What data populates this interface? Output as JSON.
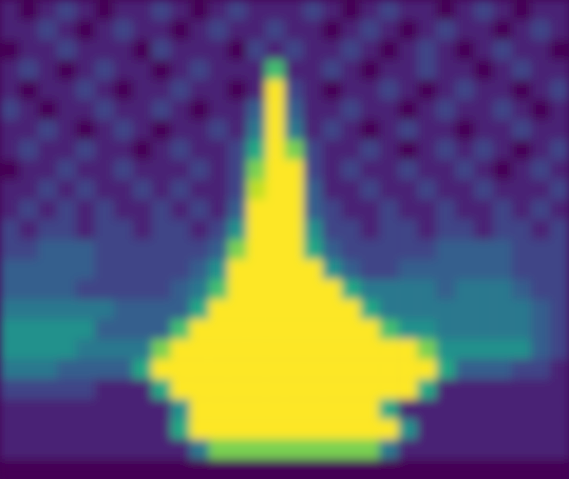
{
  "chart_data": {
    "type": "heatmap",
    "color": "viridis",
    "tick_labels": false,
    "zlim": [
      0,
      10
    ],
    "z": [
      [
        1,
        0,
        1,
        2,
        1,
        0,
        1,
        1,
        2,
        1,
        0,
        1,
        2,
        1,
        1,
        1,
        2,
        1,
        0,
        1,
        2,
        1,
        1,
        0,
        1,
        2,
        1,
        0,
        1,
        1
      ],
      [
        1,
        1,
        2,
        1,
        0,
        1,
        2,
        1,
        1,
        0,
        1,
        2,
        1,
        1,
        2,
        1,
        1,
        0,
        1,
        2,
        1,
        0,
        1,
        2,
        1,
        1,
        0,
        1,
        2,
        1
      ],
      [
        0,
        1,
        1,
        2,
        1,
        1,
        1,
        0,
        2,
        1,
        1,
        1,
        0,
        2,
        1,
        2,
        1,
        1,
        2,
        1,
        0,
        1,
        2,
        1,
        0,
        1,
        2,
        1,
        1,
        0
      ],
      [
        1,
        2,
        1,
        0,
        1,
        2,
        1,
        1,
        0,
        1,
        2,
        1,
        1,
        1,
        7,
        1,
        1,
        2,
        1,
        0,
        1,
        1,
        2,
        1,
        1,
        0,
        1,
        2,
        1,
        1
      ],
      [
        1,
        0,
        1,
        1,
        2,
        1,
        0,
        1,
        1,
        2,
        1,
        1,
        0,
        1,
        10,
        2,
        1,
        0,
        1,
        1,
        2,
        1,
        0,
        1,
        2,
        1,
        1,
        0,
        1,
        2
      ],
      [
        2,
        1,
        0,
        1,
        1,
        2,
        1,
        1,
        2,
        1,
        0,
        1,
        1,
        3,
        10,
        3,
        1,
        1,
        2,
        1,
        1,
        0,
        1,
        2,
        1,
        1,
        2,
        1,
        0,
        1
      ],
      [
        1,
        1,
        2,
        1,
        0,
        1,
        2,
        1,
        0,
        1,
        1,
        2,
        1,
        4,
        10,
        4,
        1,
        2,
        1,
        0,
        1,
        2,
        1,
        1,
        0,
        1,
        1,
        2,
        1,
        1
      ],
      [
        1,
        2,
        1,
        1,
        2,
        1,
        1,
        0,
        1,
        2,
        1,
        1,
        2,
        6,
        10,
        8,
        2,
        1,
        1,
        2,
        1,
        0,
        1,
        2,
        1,
        2,
        1,
        0,
        1,
        2
      ],
      [
        0,
        1,
        1,
        2,
        1,
        1,
        2,
        1,
        1,
        1,
        2,
        1,
        2,
        8,
        10,
        10,
        2,
        1,
        2,
        1,
        1,
        2,
        1,
        1,
        2,
        1,
        0,
        1,
        2,
        1
      ],
      [
        1,
        1,
        2,
        1,
        2,
        1,
        1,
        2,
        1,
        2,
        1,
        1,
        2,
        9,
        10,
        10,
        3,
        1,
        1,
        2,
        1,
        1,
        2,
        1,
        1,
        2,
        1,
        1,
        1,
        2
      ],
      [
        1,
        2,
        1,
        2,
        1,
        2,
        1,
        1,
        2,
        1,
        2,
        1,
        3,
        10,
        10,
        10,
        3,
        2,
        1,
        1,
        2,
        1,
        1,
        2,
        1,
        1,
        2,
        1,
        2,
        1
      ],
      [
        2,
        1,
        2,
        2,
        1,
        2,
        2,
        1,
        2,
        2,
        1,
        2,
        5,
        10,
        10,
        10,
        5,
        2,
        2,
        1,
        2,
        2,
        1,
        2,
        2,
        1,
        2,
        2,
        1,
        2
      ],
      [
        2,
        2,
        3,
        3,
        3,
        2,
        2,
        2,
        2,
        2,
        2,
        3,
        8,
        10,
        10,
        10,
        6,
        3,
        2,
        2,
        2,
        2,
        2,
        3,
        3,
        3,
        3,
        2,
        2,
        2
      ],
      [
        3,
        3,
        3,
        3,
        3,
        2,
        2,
        2,
        2,
        2,
        3,
        5,
        10,
        10,
        10,
        10,
        10,
        5,
        3,
        2,
        2,
        3,
        3,
        3,
        3,
        3,
        3,
        2,
        2,
        2
      ],
      [
        3,
        3,
        3,
        3,
        2,
        2,
        2,
        2,
        2,
        3,
        4,
        7,
        10,
        10,
        10,
        10,
        10,
        10,
        6,
        4,
        4,
        4,
        4,
        3,
        4,
        4,
        4,
        3,
        2,
        2
      ],
      [
        4,
        4,
        4,
        4,
        4,
        4,
        3,
        3,
        3,
        3,
        6,
        10,
        10,
        10,
        10,
        10,
        10,
        10,
        10,
        6,
        4,
        4,
        4,
        4,
        4,
        4,
        4,
        4,
        3,
        2
      ],
      [
        5,
        5,
        5,
        5,
        5,
        3,
        3,
        3,
        3,
        7,
        10,
        10,
        10,
        10,
        10,
        10,
        10,
        10,
        10,
        10,
        7,
        5,
        5,
        4,
        4,
        4,
        4,
        4,
        3,
        2
      ],
      [
        5,
        5,
        5,
        5,
        4,
        4,
        4,
        4,
        8,
        10,
        10,
        10,
        10,
        10,
        10,
        10,
        10,
        10,
        10,
        10,
        10,
        10,
        8,
        5,
        5,
        5,
        5,
        5,
        3,
        2
      ],
      [
        4,
        4,
        4,
        3,
        3,
        3,
        3,
        6,
        10,
        10,
        10,
        10,
        10,
        10,
        10,
        10,
        10,
        10,
        10,
        10,
        10,
        10,
        10,
        6,
        3,
        3,
        3,
        2,
        2,
        1
      ],
      [
        2,
        2,
        2,
        2,
        2,
        1,
        1,
        1,
        6,
        10,
        10,
        10,
        10,
        10,
        10,
        10,
        10,
        10,
        10,
        10,
        10,
        10,
        6,
        1,
        1,
        1,
        1,
        1,
        1,
        1
      ],
      [
        1,
        1,
        1,
        1,
        1,
        1,
        1,
        1,
        1,
        5,
        10,
        10,
        10,
        10,
        10,
        10,
        10,
        10,
        10,
        10,
        6,
        1,
        1,
        1,
        1,
        1,
        1,
        1,
        1,
        1
      ],
      [
        1,
        1,
        1,
        1,
        1,
        1,
        1,
        1,
        1,
        6,
        10,
        10,
        10,
        10,
        10,
        10,
        10,
        10,
        10,
        10,
        10,
        5,
        1,
        1,
        1,
        1,
        1,
        1,
        1,
        1
      ],
      [
        1,
        1,
        1,
        1,
        1,
        1,
        1,
        1,
        1,
        1,
        4,
        8,
        8,
        8,
        8,
        8,
        8,
        8,
        8,
        8,
        4,
        1,
        1,
        1,
        1,
        1,
        1,
        1,
        1,
        1
      ],
      [
        0,
        0,
        0,
        0,
        0,
        0,
        0,
        0,
        0,
        0,
        0,
        0,
        0,
        0,
        0,
        0,
        0,
        0,
        0,
        0,
        0,
        0,
        0,
        0,
        0,
        0,
        0,
        0,
        0,
        0
      ]
    ]
  }
}
